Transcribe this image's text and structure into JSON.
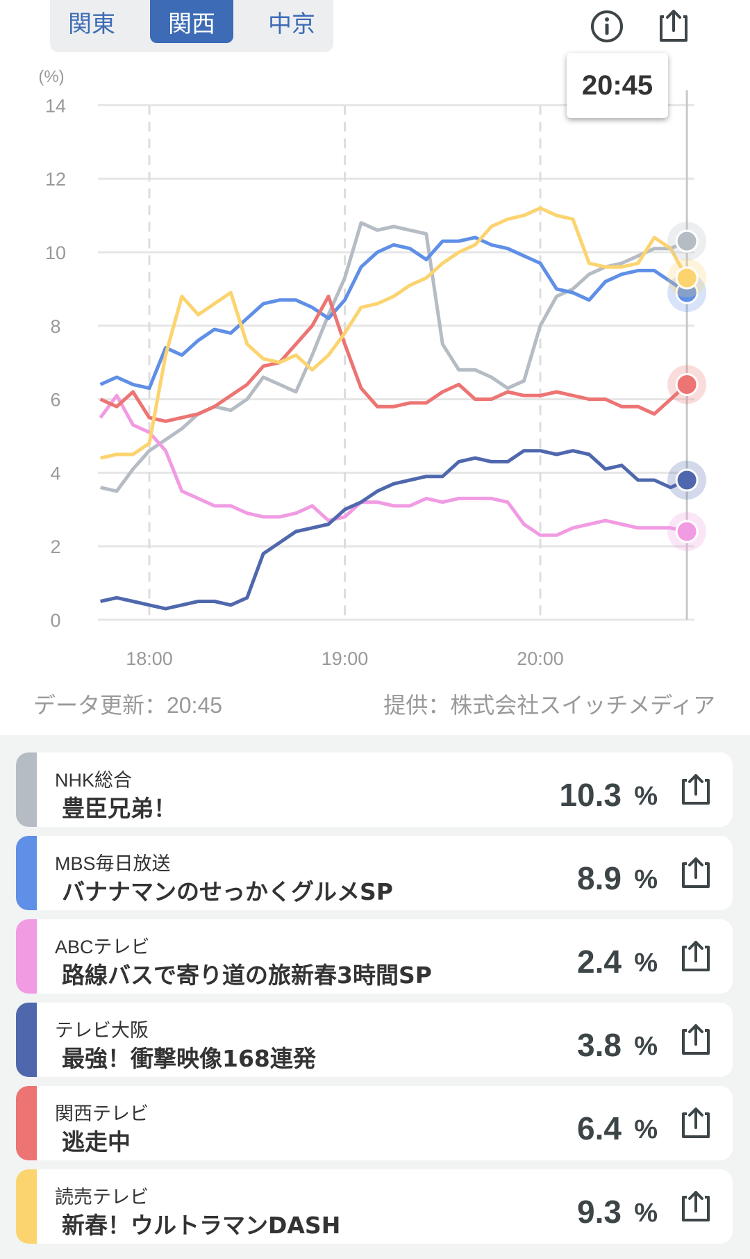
{
  "region_tabs": [
    {
      "label": "関東",
      "active": false
    },
    {
      "label": "関西",
      "active": true
    },
    {
      "label": "中京",
      "active": false
    }
  ],
  "tooltip_time": "20:45",
  "footer": {
    "updated": "データ更新：20:45",
    "provider": "提供：株式会社スイッチメディア"
  },
  "chart_data": {
    "type": "line",
    "ylabel": "(%)",
    "ylim": [
      0,
      14
    ],
    "yticks": [
      "0",
      "2",
      "4",
      "6",
      "8",
      "10",
      "12",
      "14"
    ],
    "xticks": [
      "18:00",
      "19:00",
      "20:00"
    ],
    "x_start_minutes_from_1800": -15,
    "x_step_minutes": 5,
    "cursor_minutes_from_1800": 165,
    "grid": true,
    "series": [
      {
        "name": "NHK総合",
        "color": "#b6bcc4",
        "values": [
          3.6,
          3.5,
          4.1,
          4.6,
          4.9,
          5.2,
          5.6,
          5.8,
          5.7,
          6.0,
          6.6,
          6.4,
          6.2,
          7.2,
          8.3,
          9.3,
          10.8,
          10.6,
          10.7,
          10.6,
          10.5,
          7.5,
          6.8,
          6.8,
          6.6,
          6.3,
          6.5,
          8.0,
          8.8,
          9.0,
          9.4,
          9.6,
          9.7,
          9.9,
          10.1,
          10.1,
          10.3
        ]
      },
      {
        "name": "MBS毎日放送",
        "color": "#5f8fe6",
        "values": [
          6.4,
          6.6,
          6.4,
          6.3,
          7.4,
          7.2,
          7.6,
          7.9,
          7.8,
          8.2,
          8.6,
          8.7,
          8.7,
          8.5,
          8.2,
          8.7,
          9.6,
          10.0,
          10.2,
          10.1,
          9.8,
          10.3,
          10.3,
          10.4,
          10.2,
          10.1,
          9.9,
          9.7,
          9.0,
          8.9,
          8.7,
          9.2,
          9.4,
          9.5,
          9.5,
          9.2,
          8.9
        ]
      },
      {
        "name": "ABCテレビ",
        "color": "#f19be3",
        "values": [
          5.5,
          6.1,
          5.3,
          5.1,
          4.6,
          3.5,
          3.3,
          3.1,
          3.1,
          2.9,
          2.8,
          2.8,
          2.9,
          3.1,
          2.7,
          2.8,
          3.2,
          3.2,
          3.1,
          3.1,
          3.3,
          3.2,
          3.3,
          3.3,
          3.3,
          3.2,
          2.6,
          2.3,
          2.3,
          2.5,
          2.6,
          2.7,
          2.6,
          2.5,
          2.5,
          2.5,
          2.4
        ]
      },
      {
        "name": "テレビ大阪",
        "color": "#4f68ad",
        "values": [
          0.5,
          0.6,
          0.5,
          0.4,
          0.3,
          0.4,
          0.5,
          0.5,
          0.4,
          0.6,
          1.8,
          2.1,
          2.4,
          2.5,
          2.6,
          3.0,
          3.2,
          3.5,
          3.7,
          3.8,
          3.9,
          3.9,
          4.3,
          4.4,
          4.3,
          4.3,
          4.6,
          4.6,
          4.5,
          4.6,
          4.5,
          4.1,
          4.2,
          3.8,
          3.8,
          3.6,
          3.8
        ]
      },
      {
        "name": "関西テレビ",
        "color": "#ec7472",
        "values": [
          6.0,
          5.8,
          6.2,
          5.5,
          5.4,
          5.5,
          5.6,
          5.8,
          6.1,
          6.4,
          6.9,
          7.0,
          7.5,
          8.0,
          8.8,
          7.5,
          6.3,
          5.8,
          5.8,
          5.9,
          5.9,
          6.2,
          6.4,
          6.0,
          6.0,
          6.2,
          6.1,
          6.1,
          6.2,
          6.1,
          6.0,
          6.0,
          5.8,
          5.8,
          5.6,
          6.0,
          6.4
        ]
      },
      {
        "name": "読売テレビ",
        "color": "#fcd46f",
        "values": [
          4.4,
          4.5,
          4.5,
          4.8,
          7.2,
          8.8,
          8.3,
          8.6,
          8.9,
          7.5,
          7.1,
          7.0,
          7.2,
          6.8,
          7.2,
          7.8,
          8.5,
          8.6,
          8.8,
          9.1,
          9.3,
          9.7,
          10.0,
          10.2,
          10.7,
          10.9,
          11.0,
          11.2,
          11.0,
          10.9,
          9.7,
          9.6,
          9.6,
          9.7,
          10.4,
          10.1,
          9.3
        ]
      }
    ]
  },
  "channels": [
    {
      "network": "NHK総合",
      "program": "豊臣兄弟！",
      "rating": "10.3",
      "unit": "%",
      "color": "#b6bcc4"
    },
    {
      "network": "MBS毎日放送",
      "program": "バナナマンのせっかくグルメSP",
      "rating": "8.9",
      "unit": "%",
      "color": "#5f8fe6"
    },
    {
      "network": "ABCテレビ",
      "program": "路線バスで寄り道の旅新春3時間SP",
      "rating": "2.4",
      "unit": "%",
      "color": "#f19be3"
    },
    {
      "network": "テレビ大阪",
      "program": "最強！衝撃映像168連発",
      "rating": "3.8",
      "unit": "%",
      "color": "#4f68ad"
    },
    {
      "network": "関西テレビ",
      "program": "逃走中",
      "rating": "6.4",
      "unit": "%",
      "color": "#ec7472"
    },
    {
      "network": "読売テレビ",
      "program": "新春！ウルトラマンDASH",
      "rating": "9.3",
      "unit": "%",
      "color": "#fcd46f"
    }
  ]
}
